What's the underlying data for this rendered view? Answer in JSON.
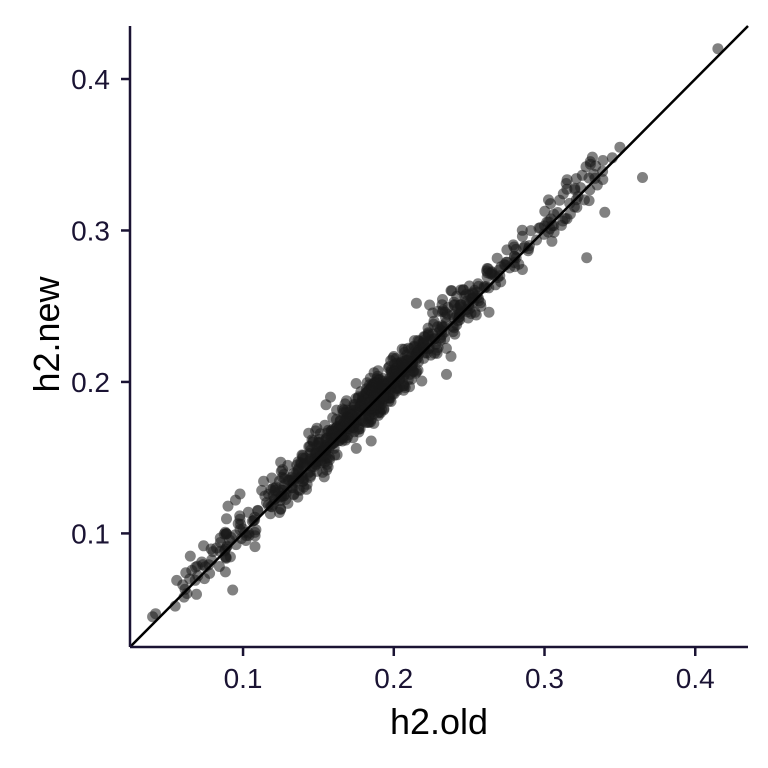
{
  "chart_data": {
    "type": "scatter",
    "xlabel": "h2.old",
    "ylabel": "h2.new",
    "xlim": [
      0.025,
      0.435
    ],
    "ylim": [
      0.025,
      0.435
    ],
    "xticks": [
      0.1,
      0.2,
      0.3,
      0.4
    ],
    "yticks": [
      0.1,
      0.2,
      0.3,
      0.4
    ],
    "xtick_labels": [
      "0.1",
      "0.2",
      "0.3",
      "0.4"
    ],
    "ytick_labels": [
      "0.1",
      "0.2",
      "0.3",
      "0.4"
    ],
    "grid": false,
    "reference_line": {
      "type": "identity",
      "slope": 1,
      "intercept": 0,
      "color": "#000000"
    },
    "point_color": "#1a1a1a",
    "point_opacity": 0.55,
    "axis_color": "#1a1333",
    "n_points": 820,
    "points_sample": [
      [
        0.04,
        0.045
      ],
      [
        0.042,
        0.047
      ],
      [
        0.055,
        0.052
      ],
      [
        0.056,
        0.069
      ],
      [
        0.06,
        0.066
      ],
      [
        0.062,
        0.074
      ],
      [
        0.065,
        0.085
      ],
      [
        0.07,
        0.072
      ],
      [
        0.075,
        0.078
      ],
      [
        0.08,
        0.088
      ],
      [
        0.085,
        0.094
      ],
      [
        0.09,
        0.118
      ],
      [
        0.095,
        0.122
      ],
      [
        0.098,
        0.126
      ],
      [
        0.1,
        0.103
      ],
      [
        0.11,
        0.115
      ],
      [
        0.12,
        0.125
      ],
      [
        0.125,
        0.147
      ],
      [
        0.13,
        0.135
      ],
      [
        0.14,
        0.145
      ],
      [
        0.15,
        0.151
      ],
      [
        0.155,
        0.185
      ],
      [
        0.158,
        0.19
      ],
      [
        0.16,
        0.163
      ],
      [
        0.17,
        0.172
      ],
      [
        0.175,
        0.199
      ],
      [
        0.18,
        0.183
      ],
      [
        0.185,
        0.161
      ],
      [
        0.19,
        0.194
      ],
      [
        0.2,
        0.202
      ],
      [
        0.21,
        0.215
      ],
      [
        0.215,
        0.252
      ],
      [
        0.22,
        0.222
      ],
      [
        0.23,
        0.233
      ],
      [
        0.235,
        0.205
      ],
      [
        0.24,
        0.242
      ],
      [
        0.25,
        0.252
      ],
      [
        0.26,
        0.263
      ],
      [
        0.27,
        0.274
      ],
      [
        0.28,
        0.283
      ],
      [
        0.29,
        0.29
      ],
      [
        0.3,
        0.303
      ],
      [
        0.31,
        0.32
      ],
      [
        0.32,
        0.327
      ],
      [
        0.328,
        0.282
      ],
      [
        0.335,
        0.33
      ],
      [
        0.34,
        0.312
      ],
      [
        0.345,
        0.348
      ],
      [
        0.35,
        0.355
      ],
      [
        0.365,
        0.335
      ],
      [
        0.415,
        0.42
      ]
    ]
  }
}
